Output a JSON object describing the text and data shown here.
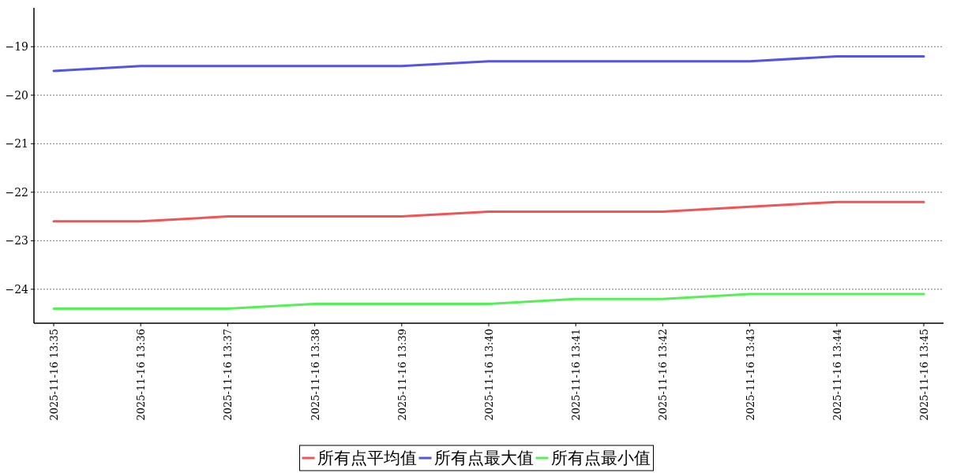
{
  "chart_data": {
    "type": "line",
    "categories": [
      "2025-11-16 13:35",
      "2025-11-16 13:36",
      "2025-11-16 13:37",
      "2025-11-16 13:38",
      "2025-11-16 13:39",
      "2025-11-16 13:40",
      "2025-11-16 13:41",
      "2025-11-16 13:42",
      "2025-11-16 13:43",
      "2025-11-16 13:44",
      "2025-11-16 13:45"
    ],
    "series": [
      {
        "name": "所有点平均值",
        "color": "#f05454",
        "values": [
          -22.6,
          -22.6,
          -22.5,
          -22.5,
          -22.5,
          -22.4,
          -22.4,
          -22.4,
          -22.3,
          -22.2,
          -22.2
        ]
      },
      {
        "name": "所有点最大值",
        "color": "#5454e6",
        "values": [
          -19.5,
          -19.4,
          -19.4,
          -19.4,
          -19.4,
          -19.3,
          -19.3,
          -19.3,
          -19.3,
          -19.2,
          -19.2
        ]
      },
      {
        "name": "所有点最小值",
        "color": "#54f054",
        "values": [
          -24.4,
          -24.4,
          -24.4,
          -24.3,
          -24.3,
          -24.3,
          -24.2,
          -24.2,
          -24.1,
          -24.1,
          -24.1
        ]
      }
    ],
    "ylim": [
      -24.7,
      -18.2
    ],
    "yticks": [
      {
        "value": -24,
        "label": "−24"
      },
      {
        "value": -23,
        "label": "−23"
      },
      {
        "value": -22,
        "label": "−22"
      },
      {
        "value": -21,
        "label": "−21"
      },
      {
        "value": -20,
        "label": "−20"
      },
      {
        "value": -19,
        "label": "−19"
      }
    ],
    "grid": "y",
    "legend": "bottom"
  }
}
